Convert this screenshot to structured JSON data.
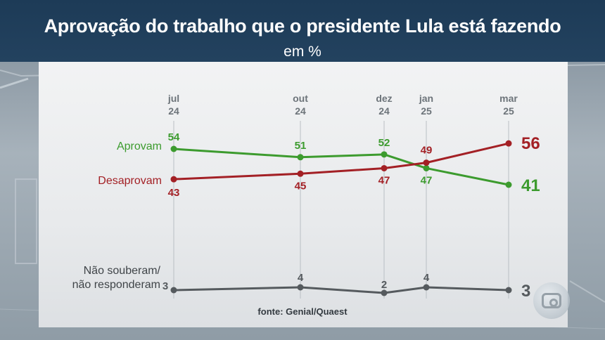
{
  "header": {
    "title": "Aprovação do trabalho que o presidente Lula está fazendo",
    "subtitle": "em %"
  },
  "source": "fonte: Genial/Quaest",
  "chart_data": {
    "type": "line",
    "title": "Aprovação do trabalho que o presidente Lula está fazendo",
    "subtitle": "em %",
    "categories": [
      {
        "month": "jul",
        "year": "24"
      },
      {
        "month": "out",
        "year": "24"
      },
      {
        "month": "dez",
        "year": "24"
      },
      {
        "month": "jan",
        "year": "25"
      },
      {
        "month": "mar",
        "year": "25"
      }
    ],
    "series": [
      {
        "name": "Aprovam",
        "color": "#3c9b2e",
        "values": [
          54,
          51,
          52,
          47,
          41
        ]
      },
      {
        "name": "Desaprovam",
        "color": "#a32025",
        "values": [
          43,
          45,
          47,
          49,
          56
        ]
      },
      {
        "name": "Não souberam/ não responderam",
        "color": "#555a5e",
        "values": [
          3,
          4,
          2,
          4,
          3
        ]
      }
    ],
    "grid": "vertical lines at each date"
  }
}
